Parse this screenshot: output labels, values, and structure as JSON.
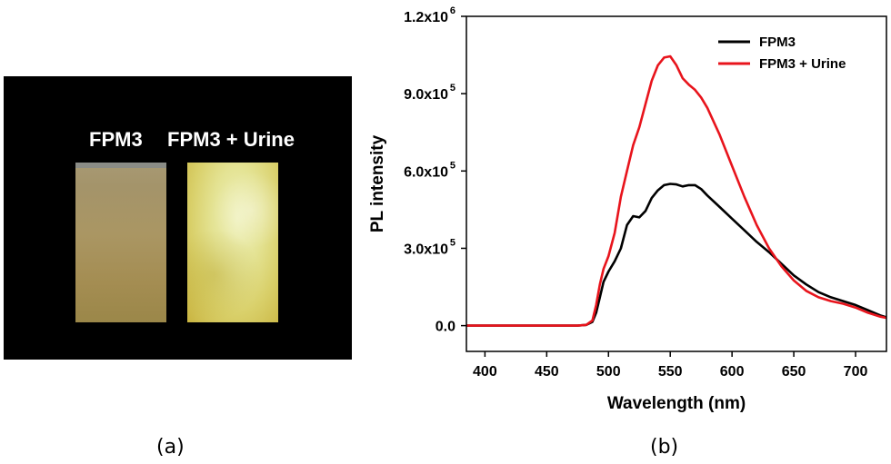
{
  "panel_a": {
    "label_left": "FPM3",
    "label_right": "FPM3 + Urine",
    "caption": "(a)"
  },
  "panel_b": {
    "caption": "(b)"
  },
  "colors": {
    "fpm3": "#000000",
    "fpm3_urine": "#e8141c"
  },
  "chart_data": {
    "type": "line",
    "title": "",
    "xlabel": "Wavelength (nm)",
    "ylabel": "PL intensity",
    "xlim": [
      385,
      725
    ],
    "ylim": [
      -100000,
      1200000
    ],
    "xticks": [
      400,
      450,
      500,
      550,
      600,
      650,
      700
    ],
    "yticks": [
      {
        "value": 0,
        "label": "0.0",
        "exp": ""
      },
      {
        "value": 300000,
        "label": "3.0x10",
        "exp": "5"
      },
      {
        "value": 600000,
        "label": "6.0x10",
        "exp": "5"
      },
      {
        "value": 900000,
        "label": "9.0x10",
        "exp": "5"
      },
      {
        "value": 1200000,
        "label": "1.2x10",
        "exp": "6"
      }
    ],
    "legend_position": "top-right",
    "series": [
      {
        "name": "FPM3",
        "color": "#000000",
        "x": [
          385,
          400,
          420,
          440,
          460,
          475,
          482,
          487,
          490,
          493,
          496,
          500,
          505,
          510,
          515,
          520,
          525,
          530,
          535,
          540,
          545,
          550,
          555,
          560,
          565,
          570,
          575,
          580,
          590,
          600,
          610,
          620,
          630,
          640,
          650,
          660,
          670,
          680,
          690,
          700,
          710,
          720,
          725
        ],
        "y": [
          0,
          0,
          0,
          0,
          0,
          0,
          3000,
          15000,
          50000,
          110000,
          170000,
          210000,
          250000,
          300000,
          390000,
          425000,
          420000,
          445000,
          495000,
          525000,
          545000,
          550000,
          548000,
          540000,
          545000,
          545000,
          530000,
          505000,
          460000,
          415000,
          370000,
          325000,
          285000,
          240000,
          195000,
          160000,
          130000,
          110000,
          95000,
          80000,
          60000,
          40000,
          32000
        ]
      },
      {
        "name": "FPM3 + Urine",
        "color": "#e8141c",
        "x": [
          385,
          400,
          420,
          440,
          460,
          475,
          482,
          487,
          490,
          493,
          496,
          500,
          505,
          510,
          515,
          520,
          525,
          530,
          535,
          540,
          545,
          550,
          555,
          560,
          565,
          570,
          575,
          580,
          590,
          600,
          610,
          620,
          630,
          640,
          650,
          660,
          670,
          680,
          690,
          700,
          710,
          720,
          725
        ],
        "y": [
          0,
          0,
          0,
          0,
          0,
          0,
          3000,
          20000,
          80000,
          160000,
          220000,
          270000,
          360000,
          500000,
          600000,
          700000,
          770000,
          860000,
          950000,
          1010000,
          1040000,
          1045000,
          1010000,
          960000,
          935000,
          915000,
          885000,
          845000,
          740000,
          620000,
          500000,
          390000,
          300000,
          230000,
          175000,
          135000,
          110000,
          95000,
          85000,
          70000,
          50000,
          35000,
          30000
        ]
      }
    ]
  }
}
